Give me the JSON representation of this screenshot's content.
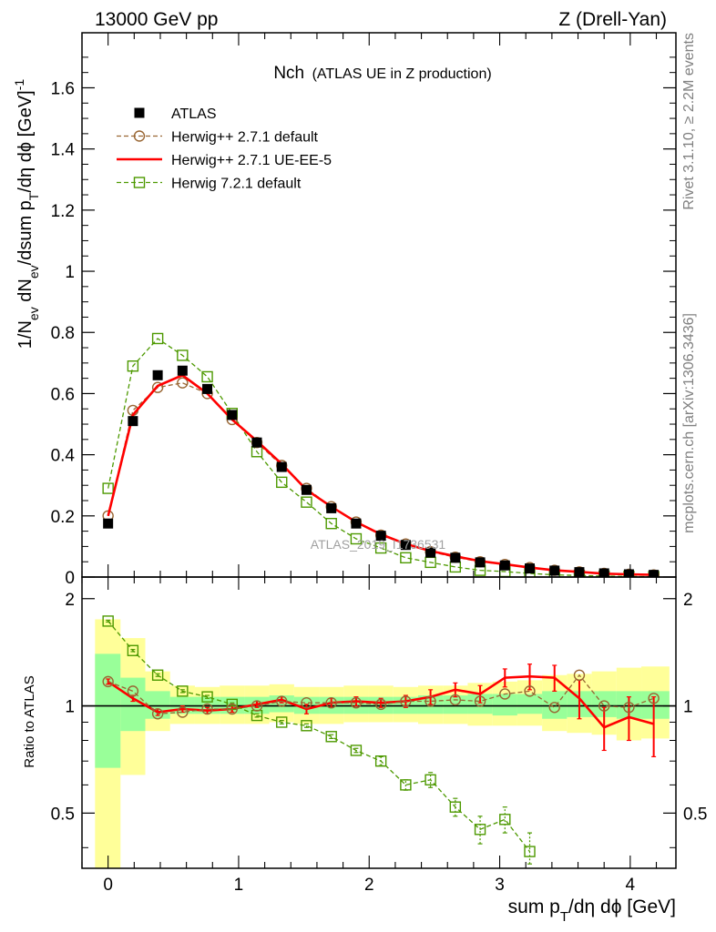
{
  "header": {
    "left": "13000 GeV pp",
    "right": "Z (Drell-Yan)"
  },
  "side_labels": {
    "rivet": "Rivet 3.1.10, ≥ 2.2M events",
    "mcplots": "mcplots.cern.ch [arXiv:1306.3436]"
  },
  "watermark": "ATLAS_2019_I1736531",
  "colors": {
    "atlas": "#000000",
    "herwig_271_default": "#996633",
    "herwig_271_ueee5": "#ff0000",
    "herwig_721_default": "#4d9900",
    "band_inner": "#99ff99",
    "band_outer": "#ffff99"
  },
  "chart_data": [
    {
      "type": "scatter",
      "panel": "main",
      "title_main": "Nch",
      "title_sub": "(ATLAS UE in Z production)",
      "ylabel": "1/N_ev dN_ev/dsum p_T/dη dϕ [GeV]^-1",
      "xlim": [
        -0.2,
        4.35
      ],
      "ylim": [
        0,
        1.78
      ],
      "yticks": [
        0,
        0.2,
        0.4,
        0.6,
        0.8,
        1,
        1.2,
        1.4,
        1.6
      ],
      "ytick_labels": [
        "0",
        "0.2",
        "0.4",
        "0.6",
        "0.8",
        "1",
        "1.2",
        "1.4",
        "1.6"
      ],
      "legend_position": "top-left",
      "x": [
        0,
        0.19,
        0.38,
        0.57,
        0.76,
        0.95,
        1.14,
        1.33,
        1.52,
        1.71,
        1.9,
        2.09,
        2.28,
        2.47,
        2.66,
        2.85,
        3.04,
        3.23,
        3.42,
        3.61,
        3.8,
        3.99,
        4.18
      ],
      "series": [
        {
          "name": "ATLAS",
          "style": "marker-square",
          "values": [
            0.175,
            0.51,
            0.66,
            0.675,
            0.615,
            0.53,
            0.44,
            0.36,
            0.285,
            0.225,
            0.175,
            0.135,
            0.105,
            0.08,
            0.063,
            0.048,
            0.038,
            0.028,
            0.021,
            0.016,
            0.012,
            0.009,
            0.007
          ]
        },
        {
          "name": "Herwig++ 2.7.1 default",
          "style": "dashed-open-circle",
          "values": [
            0.2,
            0.545,
            0.62,
            0.635,
            0.6,
            0.515,
            0.44,
            0.365,
            0.29,
            0.23,
            0.18,
            0.137,
            0.108,
            0.083,
            0.065,
            0.05,
            0.041,
            0.031,
            0.022,
            0.017,
            0.012,
            0.009,
            0.007
          ]
        },
        {
          "name": "Herwig++ 2.7.1 UE-EE-5",
          "style": "solid-line",
          "values": [
            0.2,
            0.53,
            0.625,
            0.66,
            0.6,
            0.515,
            0.445,
            0.37,
            0.285,
            0.23,
            0.18,
            0.14,
            0.108,
            0.085,
            0.068,
            0.052,
            0.042,
            0.031,
            0.022,
            0.017,
            0.011,
            0.009,
            0.007
          ]
        },
        {
          "name": "Herwig 7.2.1 default",
          "style": "dashed-open-square",
          "values": [
            0.29,
            0.69,
            0.78,
            0.725,
            0.655,
            0.535,
            0.41,
            0.31,
            0.245,
            0.175,
            0.125,
            0.095,
            0.063,
            0.048,
            0.033,
            0.022,
            0.018,
            0.012,
            0.007,
            0.005,
            0.003,
            0.002,
            0.001
          ]
        }
      ]
    },
    {
      "type": "scatter",
      "panel": "ratio",
      "ylabel": "Ratio to ATLAS",
      "xlabel": "sum p_T/dη dϕ [GeV]",
      "xlim": [
        -0.2,
        4.35
      ],
      "ylim": [
        0.35,
        2.3
      ],
      "yticks": [
        0.5,
        1,
        2
      ],
      "ytick_labels": [
        "0.5",
        "1",
        "2"
      ],
      "xticks": [
        0,
        1,
        2,
        3,
        4
      ],
      "xtick_labels": [
        "0",
        "1",
        "2",
        "3",
        "4"
      ],
      "band_edges": [
        -0.1,
        0.095,
        0.285,
        0.475,
        0.665,
        0.855,
        1.045,
        1.235,
        1.425,
        1.615,
        1.805,
        1.995,
        2.185,
        2.375,
        2.565,
        2.755,
        2.945,
        3.135,
        3.325,
        3.515,
        3.705,
        3.895,
        4.085,
        4.3
      ],
      "band_inner": [
        [
          0.67,
          1.4
        ],
        [
          0.85,
          1.2
        ],
        [
          0.92,
          1.1
        ],
        [
          0.95,
          1.06
        ],
        [
          0.95,
          1.06
        ],
        [
          0.95,
          1.06
        ],
        [
          0.95,
          1.06
        ],
        [
          0.96,
          1.07
        ],
        [
          0.95,
          1.06
        ],
        [
          0.95,
          1.06
        ],
        [
          0.95,
          1.06
        ],
        [
          0.95,
          1.06
        ],
        [
          0.95,
          1.06
        ],
        [
          0.95,
          1.07
        ],
        [
          0.95,
          1.07
        ],
        [
          0.95,
          1.08
        ],
        [
          0.94,
          1.08
        ],
        [
          0.95,
          1.08
        ],
        [
          0.92,
          1.1
        ],
        [
          0.93,
          1.1
        ],
        [
          0.93,
          1.1
        ],
        [
          0.92,
          1.1
        ],
        [
          0.92,
          1.1
        ]
      ],
      "band_outer": [
        [
          0.35,
          1.75
        ],
        [
          0.64,
          1.55
        ],
        [
          0.85,
          1.25
        ],
        [
          0.89,
          1.14
        ],
        [
          0.89,
          1.13
        ],
        [
          0.89,
          1.14
        ],
        [
          0.89,
          1.14
        ],
        [
          0.9,
          1.15
        ],
        [
          0.89,
          1.13
        ],
        [
          0.89,
          1.13
        ],
        [
          0.9,
          1.14
        ],
        [
          0.9,
          1.14
        ],
        [
          0.9,
          1.13
        ],
        [
          0.89,
          1.14
        ],
        [
          0.89,
          1.14
        ],
        [
          0.88,
          1.16
        ],
        [
          0.88,
          1.17
        ],
        [
          0.88,
          1.18
        ],
        [
          0.85,
          1.22
        ],
        [
          0.84,
          1.23
        ],
        [
          0.83,
          1.25
        ],
        [
          0.8,
          1.28
        ],
        [
          0.81,
          1.29
        ]
      ],
      "x": [
        0,
        0.19,
        0.38,
        0.57,
        0.76,
        0.95,
        1.14,
        1.33,
        1.52,
        1.71,
        1.9,
        2.09,
        2.28,
        2.47,
        2.66,
        2.85,
        3.04,
        3.23,
        3.42,
        3.61,
        3.8,
        3.99,
        4.18
      ],
      "series": [
        {
          "name": "Herwig++ 2.7.1 default",
          "style": "dashed-open-circle",
          "values": [
            1.17,
            1.1,
            0.95,
            0.96,
            0.98,
            0.98,
            1.0,
            1.03,
            1.02,
            1.02,
            1.02,
            1.01,
            1.03,
            1.03,
            1.04,
            1.03,
            1.08,
            1.1,
            0.99,
            1.22,
            1.0,
            0.99,
            1.05
          ]
        },
        {
          "name": "Herwig++ 2.7.1 UE-EE-5",
          "style": "solid-line",
          "values": [
            1.17,
            1.05,
            0.96,
            0.98,
            0.97,
            0.98,
            1.01,
            1.04,
            0.98,
            1.02,
            1.03,
            1.02,
            1.03,
            1.06,
            1.11,
            1.08,
            1.2,
            1.21,
            1.2,
            1.05,
            0.87,
            0.93,
            0.89
          ],
          "errors": [
            0.02,
            0.02,
            0.02,
            0.02,
            0.02,
            0.02,
            0.02,
            0.02,
            0.03,
            0.03,
            0.03,
            0.03,
            0.04,
            0.05,
            0.05,
            0.06,
            0.07,
            0.1,
            0.1,
            0.13,
            0.12,
            0.13,
            0.17
          ]
        },
        {
          "name": "Herwig 7.2.1 default",
          "style": "dashed-open-square",
          "values": [
            1.73,
            1.43,
            1.22,
            1.1,
            1.06,
            1.01,
            0.94,
            0.9,
            0.88,
            0.82,
            0.75,
            0.7,
            0.6,
            0.62,
            0.52,
            0.45,
            0.48,
            0.39
          ],
          "errors": [
            0.01,
            0.01,
            0.01,
            0.01,
            0.01,
            0.01,
            0.01,
            0.01,
            0.01,
            0.01,
            0.01,
            0.02,
            0.02,
            0.03,
            0.03,
            0.04,
            0.04,
            0.05
          ]
        }
      ]
    }
  ]
}
